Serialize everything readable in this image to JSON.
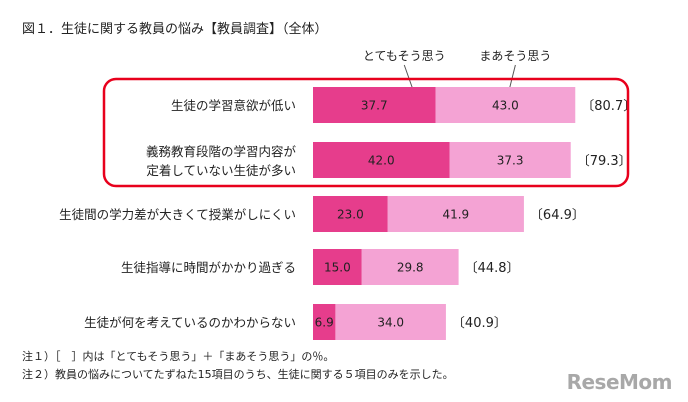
{
  "title": "図１．生徒に関する教員の悩み【教員調査】（全体）",
  "notes": [
    "注１）［　］内は「とてもそう思う」＋「まあそう思う」の％。",
    "注２）教員の悩みについてたずねた15項目のうち、生徒に関する５項目のみを示した。"
  ],
  "logo": "ReseMom",
  "colors": {
    "series_strong": "#e63d8c",
    "series_mild": "#f4a3d4",
    "highlight_box": "#e8001c"
  },
  "chart_data": {
    "type": "bar",
    "orientation": "horizontal",
    "stacked": true,
    "categories": [
      [
        "生徒の学習意欲が低い"
      ],
      [
        "義務教育段階の学習内容が",
        "定着していない生徒が多い"
      ],
      [
        "生徒間の学力差が大きくて授業がしにくい"
      ],
      [
        "生徒指導に時間がかかり過ぎる"
      ],
      [
        "生徒が何を考えているのかわからない"
      ]
    ],
    "series": [
      {
        "name": "とてもそう思う",
        "values": [
          37.7,
          42.0,
          23.0,
          15.0,
          6.9
        ],
        "labels": [
          "37.7",
          "42.0",
          "23.0",
          "15.0",
          "6.9"
        ]
      },
      {
        "name": "まあそう思う",
        "values": [
          43.0,
          37.3,
          41.9,
          29.8,
          34.0
        ],
        "labels": [
          "43.0",
          "37.3",
          "41.9",
          "29.8",
          "34.0"
        ]
      }
    ],
    "totals": [
      "〔80.7〕",
      "〔79.3〕",
      "〔64.9〕",
      "〔44.8〕",
      "〔40.9〕"
    ],
    "highlighted_categories": [
      0,
      1
    ],
    "legend_placement": "top",
    "grid": false
  }
}
